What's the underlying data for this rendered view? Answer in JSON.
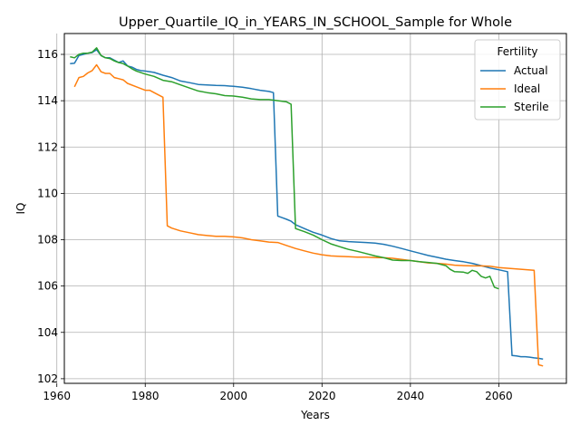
{
  "chart_data": {
    "type": "line",
    "title": "Upper_Quartile_IQ_in_YEARS_IN_SCHOOL_Sample for Whole",
    "xlabel": "Years",
    "ylabel": "IQ",
    "xlim": [
      1961.7,
      2075.3
    ],
    "ylim": [
      101.8,
      116.9
    ],
    "xticks": [
      1960,
      1980,
      2000,
      2020,
      2040,
      2060
    ],
    "yticks": [
      102,
      104,
      106,
      108,
      110,
      112,
      114,
      116
    ],
    "grid": true,
    "legend": {
      "title": "Fertility",
      "placement": "top-right"
    },
    "series": [
      {
        "name": "Actual",
        "color": "#1f77b4",
        "points": [
          [
            1963,
            115.6
          ],
          [
            1964,
            115.62
          ],
          [
            1965,
            115.95
          ],
          [
            1966,
            116.0
          ],
          [
            1967,
            116.05
          ],
          [
            1968,
            116.08
          ],
          [
            1969,
            116.2
          ],
          [
            1970,
            115.95
          ],
          [
            1971,
            115.85
          ],
          [
            1972,
            115.85
          ],
          [
            1973,
            115.75
          ],
          [
            1974,
            115.65
          ],
          [
            1975,
            115.72
          ],
          [
            1976,
            115.5
          ],
          [
            1977,
            115.45
          ],
          [
            1978,
            115.35
          ],
          [
            1979,
            115.3
          ],
          [
            1980,
            115.28
          ],
          [
            1982,
            115.22
          ],
          [
            1984,
            115.1
          ],
          [
            1986,
            115.0
          ],
          [
            1988,
            114.85
          ],
          [
            1990,
            114.78
          ],
          [
            1992,
            114.7
          ],
          [
            1994,
            114.68
          ],
          [
            1996,
            114.66
          ],
          [
            1998,
            114.65
          ],
          [
            2000,
            114.62
          ],
          [
            2002,
            114.58
          ],
          [
            2004,
            114.52
          ],
          [
            2006,
            114.45
          ],
          [
            2008,
            114.4
          ],
          [
            2009,
            114.35
          ],
          [
            2010,
            109.02
          ],
          [
            2011,
            108.95
          ],
          [
            2012,
            108.88
          ],
          [
            2013,
            108.8
          ],
          [
            2014,
            108.65
          ],
          [
            2016,
            108.48
          ],
          [
            2018,
            108.32
          ],
          [
            2020,
            108.2
          ],
          [
            2022,
            108.05
          ],
          [
            2024,
            107.95
          ],
          [
            2026,
            107.92
          ],
          [
            2028,
            107.9
          ],
          [
            2030,
            107.88
          ],
          [
            2032,
            107.85
          ],
          [
            2034,
            107.8
          ],
          [
            2036,
            107.72
          ],
          [
            2038,
            107.62
          ],
          [
            2040,
            107.52
          ],
          [
            2042,
            107.42
          ],
          [
            2044,
            107.32
          ],
          [
            2046,
            107.24
          ],
          [
            2048,
            107.16
          ],
          [
            2050,
            107.1
          ],
          [
            2052,
            107.05
          ],
          [
            2054,
            106.98
          ],
          [
            2056,
            106.88
          ],
          [
            2058,
            106.78
          ],
          [
            2060,
            106.7
          ],
          [
            2062,
            106.62
          ],
          [
            2063,
            103.0
          ],
          [
            2064,
            102.98
          ],
          [
            2065,
            102.95
          ],
          [
            2066,
            102.95
          ],
          [
            2067,
            102.93
          ],
          [
            2068,
            102.9
          ],
          [
            2069,
            102.88
          ],
          [
            2070,
            102.85
          ]
        ]
      },
      {
        "name": "Ideal",
        "color": "#ff7f0e",
        "points": [
          [
            1964,
            114.6
          ],
          [
            1965,
            115.0
          ],
          [
            1966,
            115.05
          ],
          [
            1967,
            115.2
          ],
          [
            1968,
            115.3
          ],
          [
            1969,
            115.55
          ],
          [
            1970,
            115.25
          ],
          [
            1971,
            115.18
          ],
          [
            1972,
            115.18
          ],
          [
            1973,
            115.0
          ],
          [
            1974,
            114.95
          ],
          [
            1975,
            114.9
          ],
          [
            1976,
            114.75
          ],
          [
            1978,
            114.6
          ],
          [
            1980,
            114.45
          ],
          [
            1981,
            114.45
          ],
          [
            1982,
            114.35
          ],
          [
            1984,
            114.15
          ],
          [
            1985,
            108.6
          ],
          [
            1986,
            108.5
          ],
          [
            1988,
            108.38
          ],
          [
            1990,
            108.3
          ],
          [
            1992,
            108.22
          ],
          [
            1994,
            108.18
          ],
          [
            1996,
            108.15
          ],
          [
            1998,
            108.15
          ],
          [
            2000,
            108.12
          ],
          [
            2002,
            108.08
          ],
          [
            2004,
            108.0
          ],
          [
            2006,
            107.95
          ],
          [
            2008,
            107.9
          ],
          [
            2010,
            107.88
          ],
          [
            2012,
            107.75
          ],
          [
            2014,
            107.62
          ],
          [
            2016,
            107.52
          ],
          [
            2018,
            107.42
          ],
          [
            2020,
            107.35
          ],
          [
            2022,
            107.3
          ],
          [
            2024,
            107.28
          ],
          [
            2026,
            107.27
          ],
          [
            2028,
            107.25
          ],
          [
            2030,
            107.25
          ],
          [
            2032,
            107.23
          ],
          [
            2034,
            107.22
          ],
          [
            2036,
            107.2
          ],
          [
            2038,
            107.15
          ],
          [
            2040,
            107.1
          ],
          [
            2042,
            107.05
          ],
          [
            2044,
            107.0
          ],
          [
            2046,
            106.98
          ],
          [
            2048,
            106.95
          ],
          [
            2050,
            106.9
          ],
          [
            2052,
            106.88
          ],
          [
            2054,
            106.87
          ],
          [
            2056,
            106.87
          ],
          [
            2058,
            106.86
          ],
          [
            2060,
            106.8
          ],
          [
            2062,
            106.77
          ],
          [
            2064,
            106.74
          ],
          [
            2066,
            106.71
          ],
          [
            2068,
            106.68
          ],
          [
            2069,
            102.6
          ],
          [
            2070,
            102.55
          ]
        ]
      },
      {
        "name": "Sterile",
        "color": "#2ca02c",
        "points": [
          [
            1963,
            115.9
          ],
          [
            1964,
            115.85
          ],
          [
            1965,
            116.0
          ],
          [
            1966,
            116.05
          ],
          [
            1967,
            116.05
          ],
          [
            1968,
            116.1
          ],
          [
            1969,
            116.28
          ],
          [
            1970,
            115.95
          ],
          [
            1971,
            115.85
          ],
          [
            1972,
            115.82
          ],
          [
            1973,
            115.72
          ],
          [
            1974,
            115.65
          ],
          [
            1975,
            115.6
          ],
          [
            1976,
            115.5
          ],
          [
            1977,
            115.38
          ],
          [
            1978,
            115.28
          ],
          [
            1980,
            115.15
          ],
          [
            1982,
            115.05
          ],
          [
            1984,
            114.88
          ],
          [
            1986,
            114.82
          ],
          [
            1988,
            114.68
          ],
          [
            1990,
            114.55
          ],
          [
            1992,
            114.42
          ],
          [
            1994,
            114.35
          ],
          [
            1996,
            114.3
          ],
          [
            1998,
            114.22
          ],
          [
            2000,
            114.2
          ],
          [
            2002,
            114.15
          ],
          [
            2004,
            114.08
          ],
          [
            2006,
            114.05
          ],
          [
            2008,
            114.05
          ],
          [
            2010,
            114.0
          ],
          [
            2012,
            113.95
          ],
          [
            2013,
            113.85
          ],
          [
            2014,
            108.48
          ],
          [
            2016,
            108.35
          ],
          [
            2018,
            108.2
          ],
          [
            2020,
            108.0
          ],
          [
            2022,
            107.82
          ],
          [
            2024,
            107.7
          ],
          [
            2026,
            107.58
          ],
          [
            2028,
            107.5
          ],
          [
            2030,
            107.4
          ],
          [
            2032,
            107.3
          ],
          [
            2034,
            107.22
          ],
          [
            2036,
            107.12
          ],
          [
            2038,
            107.1
          ],
          [
            2040,
            107.1
          ],
          [
            2042,
            107.05
          ],
          [
            2044,
            107.02
          ],
          [
            2046,
            106.98
          ],
          [
            2048,
            106.88
          ],
          [
            2049,
            106.72
          ],
          [
            2050,
            106.62
          ],
          [
            2052,
            106.6
          ],
          [
            2053,
            106.55
          ],
          [
            2054,
            106.68
          ],
          [
            2055,
            106.62
          ],
          [
            2056,
            106.42
          ],
          [
            2057,
            106.35
          ],
          [
            2058,
            106.42
          ],
          [
            2059,
            105.95
          ],
          [
            2060,
            105.88
          ]
        ]
      }
    ]
  }
}
